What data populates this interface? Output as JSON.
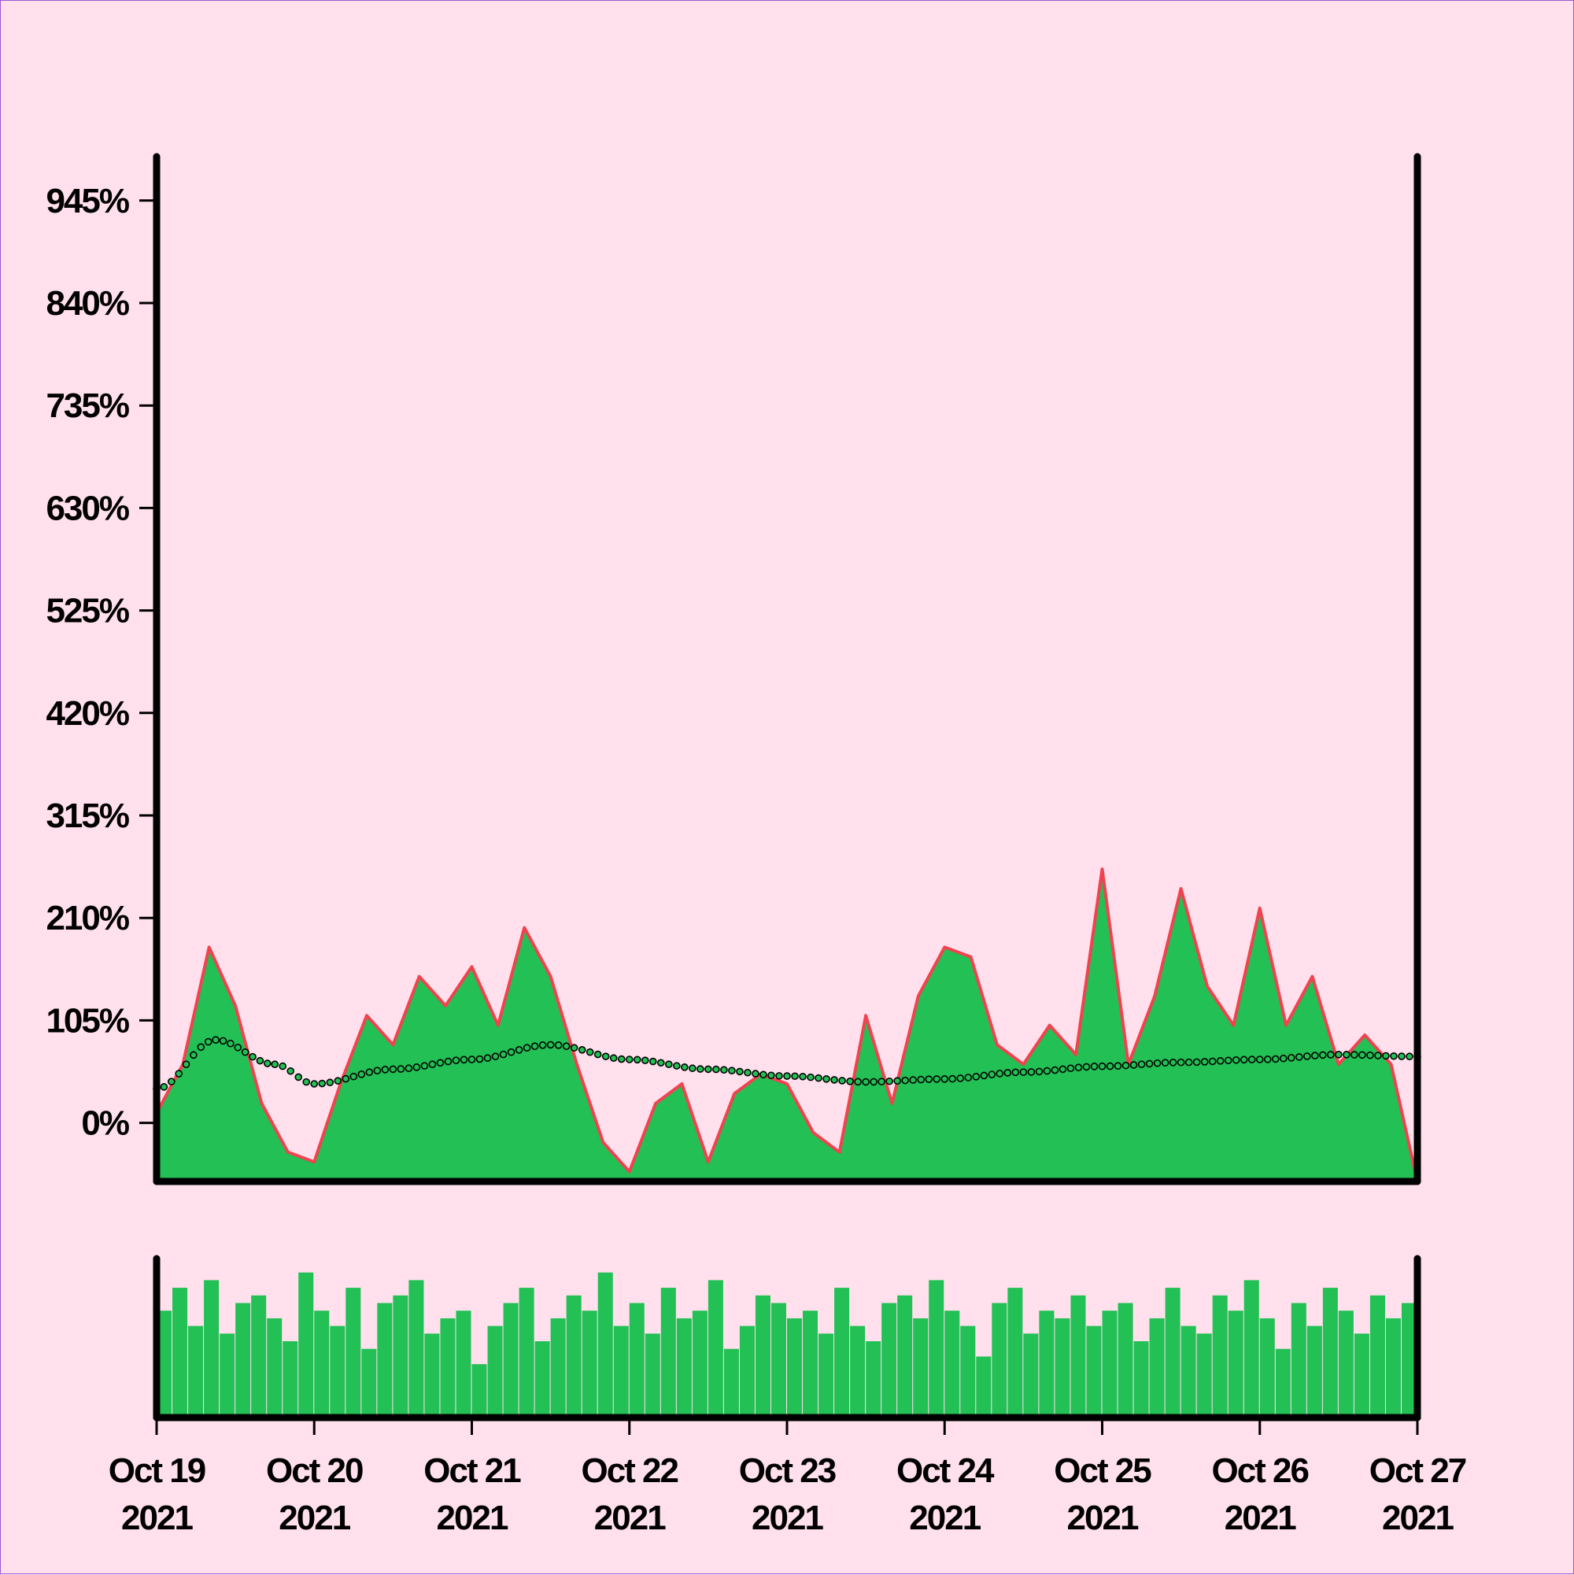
{
  "chart_data": {
    "type": "area",
    "title": "",
    "xlabel": "",
    "ylabel": "",
    "colors": {
      "background": "#ffe0ec",
      "area_fill": "#22c055",
      "area_line": "#ef4350",
      "moving_average": "#22c055",
      "axis": "#000000"
    },
    "x_range": [
      "2021-10-19",
      "2021-10-27"
    ],
    "x_ticks": [
      {
        "date": "2021-10-19",
        "line1": "Oct 19",
        "line2": "2021"
      },
      {
        "date": "2021-10-20",
        "line1": "Oct 20",
        "line2": "2021"
      },
      {
        "date": "2021-10-21",
        "line1": "Oct 21",
        "line2": "2021"
      },
      {
        "date": "2021-10-22",
        "line1": "Oct 22",
        "line2": "2021"
      },
      {
        "date": "2021-10-23",
        "line1": "Oct 23",
        "line2": "2021"
      },
      {
        "date": "2021-10-24",
        "line1": "Oct 24",
        "line2": "2021"
      },
      {
        "date": "2021-10-25",
        "line1": "Oct 25",
        "line2": "2021"
      },
      {
        "date": "2021-10-26",
        "line1": "Oct 26",
        "line2": "2021"
      },
      {
        "date": "2021-10-27",
        "line1": "Oct 27",
        "line2": "2021"
      }
    ],
    "y_ticks": [
      {
        "value": 0,
        "label": "0%"
      },
      {
        "value": 105,
        "label": "105%"
      },
      {
        "value": 210,
        "label": "210%"
      },
      {
        "value": 315,
        "label": "315%"
      },
      {
        "value": 420,
        "label": "420%"
      },
      {
        "value": 525,
        "label": "525%"
      },
      {
        "value": 630,
        "label": "630%"
      },
      {
        "value": 735,
        "label": "735%"
      },
      {
        "value": 840,
        "label": "840%"
      },
      {
        "value": 945,
        "label": "945%"
      }
    ],
    "ylim": [
      -60,
      990
    ],
    "grid": false,
    "series": [
      {
        "kind": "area",
        "x": [
          "2021-10-19 00:00",
          "2021-10-19 04:00",
          "2021-10-19 08:00",
          "2021-10-19 12:00",
          "2021-10-19 16:00",
          "2021-10-19 20:00",
          "2021-10-20 00:00",
          "2021-10-20 04:00",
          "2021-10-20 08:00",
          "2021-10-20 12:00",
          "2021-10-20 16:00",
          "2021-10-20 20:00",
          "2021-10-21 00:00",
          "2021-10-21 04:00",
          "2021-10-21 08:00",
          "2021-10-21 12:00",
          "2021-10-21 16:00",
          "2021-10-21 20:00",
          "2021-10-22 00:00",
          "2021-10-22 04:00",
          "2021-10-22 08:00",
          "2021-10-22 12:00",
          "2021-10-22 16:00",
          "2021-10-22 20:00",
          "2021-10-23 00:00",
          "2021-10-23 04:00",
          "2021-10-23 08:00",
          "2021-10-23 12:00",
          "2021-10-23 16:00",
          "2021-10-23 20:00",
          "2021-10-24 00:00",
          "2021-10-24 04:00",
          "2021-10-24 08:00",
          "2021-10-24 12:00",
          "2021-10-24 16:00",
          "2021-10-24 20:00",
          "2021-10-25 00:00",
          "2021-10-25 04:00",
          "2021-10-25 08:00",
          "2021-10-25 12:00",
          "2021-10-25 16:00",
          "2021-10-25 20:00",
          "2021-10-26 00:00",
          "2021-10-26 04:00",
          "2021-10-26 08:00",
          "2021-10-26 12:00",
          "2021-10-26 16:00",
          "2021-10-26 20:00",
          "2021-10-27 00:00"
        ],
        "values": [
          10,
          60,
          180,
          120,
          20,
          -30,
          -40,
          40,
          110,
          80,
          150,
          120,
          160,
          100,
          200,
          150,
          60,
          -20,
          -50,
          20,
          40,
          -40,
          30,
          50,
          40,
          -10,
          -30,
          110,
          20,
          130,
          180,
          170,
          80,
          60,
          100,
          70,
          260,
          60,
          130,
          240,
          140,
          100,
          220,
          100,
          150,
          60,
          90,
          60,
          -60
        ]
      },
      {
        "kind": "moving-average",
        "x": [
          "2021-10-19 00:00",
          "2021-10-19 09:00",
          "2021-10-19 18:00",
          "2021-10-20 00:00",
          "2021-10-20 12:00",
          "2021-10-21 00:00",
          "2021-10-21 12:00",
          "2021-10-22 00:00",
          "2021-10-22 12:00",
          "2021-10-23 00:00",
          "2021-10-23 12:00",
          "2021-10-24 00:00",
          "2021-10-24 12:00",
          "2021-10-25 00:00",
          "2021-10-25 12:00",
          "2021-10-26 00:00",
          "2021-10-26 12:00",
          "2021-10-27 00:00"
        ],
        "values": [
          35,
          85,
          60,
          40,
          55,
          65,
          80,
          65,
          55,
          48,
          42,
          45,
          52,
          58,
          62,
          65,
          70,
          68
        ]
      },
      {
        "kind": "volume",
        "x_range": [
          "2021-10-19",
          "2021-10-27"
        ],
        "relative_values": [
          0.7,
          0.85,
          0.6,
          0.9,
          0.55,
          0.75,
          0.8,
          0.65,
          0.5,
          0.95,
          0.7,
          0.6,
          0.85,
          0.45,
          0.75,
          0.8,
          0.9,
          0.55,
          0.65,
          0.7,
          0.35,
          0.6,
          0.75,
          0.85,
          0.5,
          0.65,
          0.8,
          0.7,
          0.95,
          0.6,
          0.75,
          0.55,
          0.85,
          0.65,
          0.7,
          0.9,
          0.45,
          0.6,
          0.8,
          0.75,
          0.65,
          0.7,
          0.55,
          0.85,
          0.6,
          0.5,
          0.75,
          0.8,
          0.65,
          0.9,
          0.7,
          0.6,
          0.4,
          0.75,
          0.85,
          0.55,
          0.7,
          0.65,
          0.8,
          0.6,
          0.7,
          0.75,
          0.5,
          0.65,
          0.85,
          0.6,
          0.55,
          0.8,
          0.7,
          0.9,
          0.65,
          0.45,
          0.75,
          0.6,
          0.85,
          0.7,
          0.55,
          0.8,
          0.65,
          0.75
        ]
      }
    ]
  }
}
